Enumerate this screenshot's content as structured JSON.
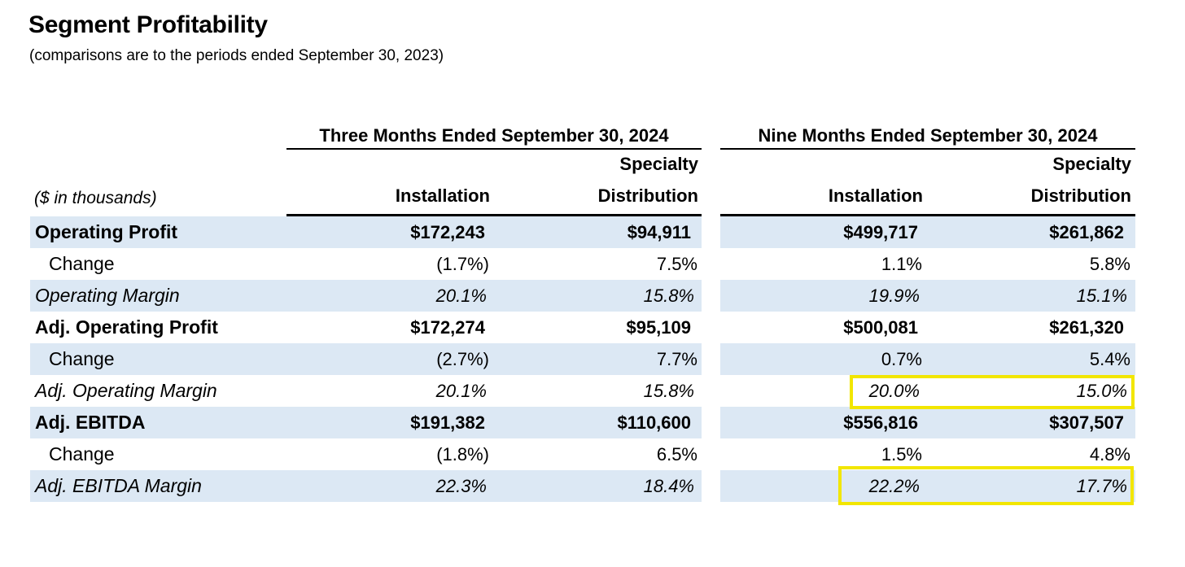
{
  "title": "Segment Profitability",
  "subtitle": "(comparisons are to the periods ended September 30, 2023)",
  "units_label": "($ in thousands)",
  "groups": [
    "Three Months Ended September 30, 2024",
    "Nine Months Ended September 30, 2024"
  ],
  "columns": {
    "installation": "Installation",
    "specialty_line1": "Specialty",
    "specialty_line2": "Distribution"
  },
  "rows": [
    {
      "label": "Operating Profit",
      "values": [
        "$172,243",
        "$94,911",
        "$499,717",
        "$261,862"
      ]
    },
    {
      "label": "Change",
      "values": [
        "(1.7%)",
        "7.5%",
        "1.1%",
        "5.8%"
      ]
    },
    {
      "label": "Operating Margin",
      "values": [
        "20.1%",
        "15.8%",
        "19.9%",
        "15.1%"
      ]
    },
    {
      "label": "Adj. Operating Profit",
      "values": [
        "$172,274",
        "$95,109",
        "$500,081",
        "$261,320"
      ]
    },
    {
      "label": "Change",
      "values": [
        "(2.7%)",
        "7.7%",
        "0.7%",
        "5.4%"
      ]
    },
    {
      "label": "Adj. Operating Margin",
      "values": [
        "20.1%",
        "15.8%",
        "20.0%",
        "15.0%"
      ]
    },
    {
      "label": "Adj. EBITDA",
      "values": [
        "$191,382",
        "$110,600",
        "$556,816",
        "$307,507"
      ]
    },
    {
      "label": "Change",
      "values": [
        "(1.8%)",
        "6.5%",
        "1.5%",
        "4.8%"
      ]
    },
    {
      "label": "Adj. EBITDA Margin",
      "values": [
        "22.3%",
        "18.4%",
        "22.2%",
        "17.7%"
      ]
    }
  ],
  "highlight_color": "#f2e600",
  "band_color": "#dce8f4"
}
